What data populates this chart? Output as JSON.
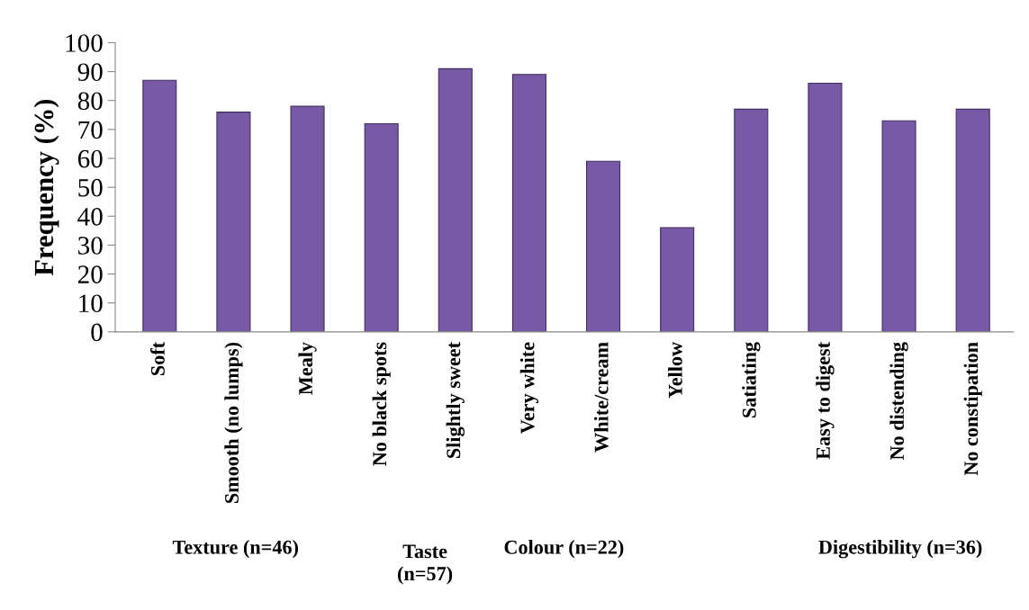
{
  "chart_data": {
    "type": "bar",
    "ylabel": "Frequency (%)",
    "categories": [
      "Soft",
      "Smooth (no lumps)",
      "Mealy",
      "No black spots",
      "Slightly sweet",
      "Very white",
      "White/cream",
      "Yellow",
      "Satiating",
      "Easy to digest",
      "No distending",
      "No constipation"
    ],
    "values": [
      87,
      76,
      78,
      72,
      91,
      89,
      59,
      36,
      77,
      86,
      73,
      77
    ],
    "color": "#7859a6",
    "ylim": [
      0,
      100
    ],
    "yticks": [
      0,
      10,
      20,
      30,
      40,
      50,
      60,
      70,
      80,
      90,
      100
    ],
    "grid": false,
    "legend": false,
    "annotations": [
      "Texture (n=46)",
      "Taste\n(n=57)",
      "Colour (n=22)",
      "Digestibility (n=36)"
    ]
  }
}
